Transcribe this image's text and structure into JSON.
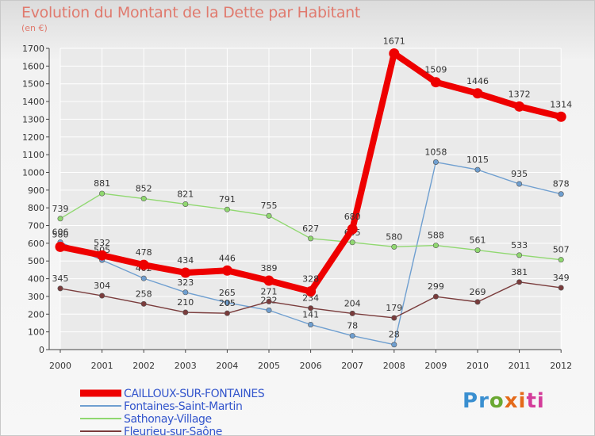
{
  "title": "Evolution du Montant de la Dette par Habitant",
  "unit": "(en €)",
  "logo_text": "Proxiti",
  "colors": {
    "title": "#e07a6e",
    "grid": "#ffffff",
    "axis": "#333333"
  },
  "chart_data": {
    "type": "line",
    "title": "Evolution du Montant de la Dette par Habitant",
    "ylabel": "(en €)",
    "xlabel": "",
    "ylim": [
      0,
      1700
    ],
    "yticks": [
      0,
      100,
      200,
      300,
      400,
      500,
      600,
      700,
      800,
      900,
      1000,
      1100,
      1200,
      1300,
      1400,
      1500,
      1600,
      1700
    ],
    "x": [
      "2000",
      "2001",
      "2002",
      "2003",
      "2004",
      "2005",
      "2006",
      "2007",
      "2008",
      "2009",
      "2010",
      "2011",
      "2012"
    ],
    "grid": true,
    "legend_position": "bottom-left",
    "series": [
      {
        "name": "Fontaines-Saint-Martin",
        "color": "#6f9fd0",
        "values": [
          606,
          505,
          402,
          323,
          265,
          222,
          141,
          78,
          28,
          1058,
          1015,
          935,
          878
        ]
      },
      {
        "name": "Sathonay-Village",
        "color": "#90d870",
        "values": [
          739,
          881,
          852,
          821,
          791,
          755,
          627,
          605,
          580,
          588,
          561,
          533,
          507
        ]
      },
      {
        "name": "Fleurieu-sur-Saône",
        "color": "#7a3c3c",
        "values": [
          345,
          304,
          258,
          210,
          205,
          271,
          234,
          204,
          179,
          299,
          269,
          381,
          349
        ]
      },
      {
        "name": "CAILLOUX-SUR-FONTAINES",
        "color": "#ee0000",
        "values": [
          580,
          532,
          478,
          434,
          446,
          389,
          328,
          680,
          1671,
          1509,
          1446,
          1372,
          1314
        ]
      }
    ]
  }
}
